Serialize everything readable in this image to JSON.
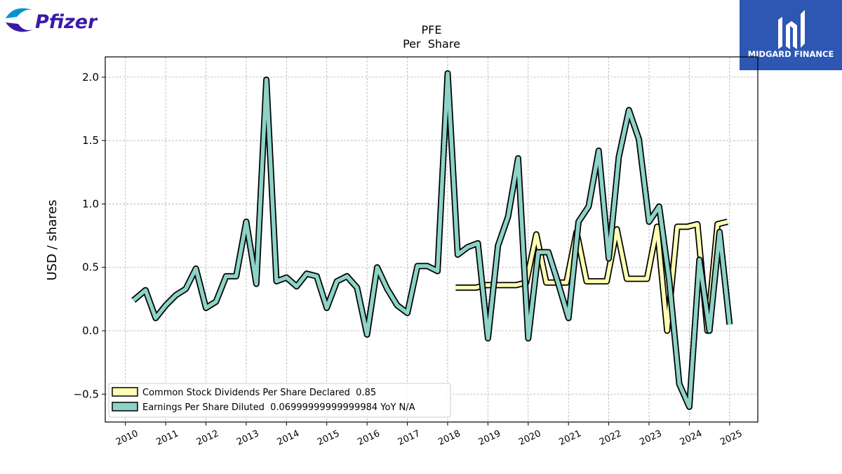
{
  "branding": {
    "left_logo": "Pfizer",
    "right_logo": "MIDGARD FINANCE"
  },
  "colors": {
    "dividends": "#ffffb3",
    "eps": "#8dd3c7",
    "outline": "#000000",
    "grid": "#b0b0b0",
    "pfizer_blue": "#0093d0",
    "pfizer_purple": "#3a1aa8",
    "midgard_bg": "#2d57b3"
  },
  "chart_data": {
    "type": "line",
    "title": "PFE",
    "subtitle": "Per  Share",
    "xlabel": "",
    "ylabel": "USD / shares",
    "xlim": [
      2009.5,
      2025.7
    ],
    "ylim": [
      -0.72,
      2.16
    ],
    "yticks": [
      -0.5,
      0.0,
      0.5,
      1.0,
      1.5,
      2.0
    ],
    "ytick_labels": [
      "−0.5",
      "0.0",
      "0.5",
      "1.0",
      "1.5",
      "2.0"
    ],
    "xticks": [
      2010,
      2011,
      2012,
      2013,
      2014,
      2015,
      2016,
      2017,
      2018,
      2019,
      2020,
      2021,
      2022,
      2023,
      2024,
      2025
    ],
    "xtick_labels": [
      "2010",
      "2011",
      "2012",
      "2013",
      "2014",
      "2015",
      "2016",
      "2017",
      "2018",
      "2019",
      "2020",
      "2021",
      "2022",
      "2023",
      "2024",
      "2025"
    ],
    "grid": true,
    "legend_position": "lower-left",
    "series": [
      {
        "name": "Common Stock Dividends Per Share Declared  0.85",
        "x": [
          2018.2,
          2018.45,
          2018.7,
          2018.95,
          2019.2,
          2019.45,
          2019.7,
          2019.95,
          2020.2,
          2020.45,
          2020.7,
          2020.95,
          2021.2,
          2021.45,
          2021.7,
          2021.95,
          2022.2,
          2022.45,
          2022.7,
          2022.95,
          2023.2,
          2023.45,
          2023.7,
          2023.95,
          2024.2,
          2024.45,
          2024.7,
          2024.95
        ],
        "y": [
          0.34,
          0.34,
          0.34,
          0.36,
          0.36,
          0.36,
          0.36,
          0.38,
          0.76,
          0.38,
          0.38,
          0.38,
          0.78,
          0.39,
          0.39,
          0.39,
          0.8,
          0.41,
          0.41,
          0.41,
          0.82,
          0.0,
          0.82,
          0.82,
          0.84,
          0.0,
          0.84,
          0.86
        ]
      },
      {
        "name": "Earnings Per Share Diluted  0.06999999999999984 YoY N/A",
        "x": [
          2010.2,
          2010.5,
          2010.75,
          2011.0,
          2011.25,
          2011.5,
          2011.75,
          2012.0,
          2012.25,
          2012.5,
          2012.75,
          2013.0,
          2013.25,
          2013.5,
          2013.75,
          2014.0,
          2014.25,
          2014.5,
          2014.75,
          2015.0,
          2015.25,
          2015.5,
          2015.75,
          2016.0,
          2016.25,
          2016.5,
          2016.75,
          2017.0,
          2017.25,
          2017.5,
          2017.75,
          2018.0,
          2018.25,
          2018.5,
          2018.75,
          2019.0,
          2019.25,
          2019.5,
          2019.75,
          2020.0,
          2020.25,
          2020.5,
          2020.75,
          2021.0,
          2021.25,
          2021.5,
          2021.75,
          2022.0,
          2022.25,
          2022.5,
          2022.75,
          2023.0,
          2023.25,
          2023.5,
          2023.75,
          2024.0,
          2024.25,
          2024.5,
          2024.75,
          2025.0
        ],
        "y": [
          0.24,
          0.32,
          0.1,
          0.2,
          0.28,
          0.33,
          0.49,
          0.18,
          0.23,
          0.43,
          0.43,
          0.86,
          0.37,
          1.98,
          0.39,
          0.42,
          0.35,
          0.45,
          0.43,
          0.18,
          0.39,
          0.43,
          0.34,
          -0.03,
          0.5,
          0.33,
          0.2,
          0.14,
          0.51,
          0.51,
          0.47,
          2.03,
          0.6,
          0.66,
          0.69,
          -0.06,
          0.67,
          0.9,
          1.36,
          -0.06,
          0.62,
          0.62,
          0.37,
          0.1,
          0.86,
          0.98,
          1.42,
          0.57,
          1.37,
          1.74,
          1.51,
          0.86,
          0.98,
          0.4,
          -0.42,
          -0.6,
          0.56,
          0.0,
          0.78,
          0.05
        ]
      }
    ]
  }
}
